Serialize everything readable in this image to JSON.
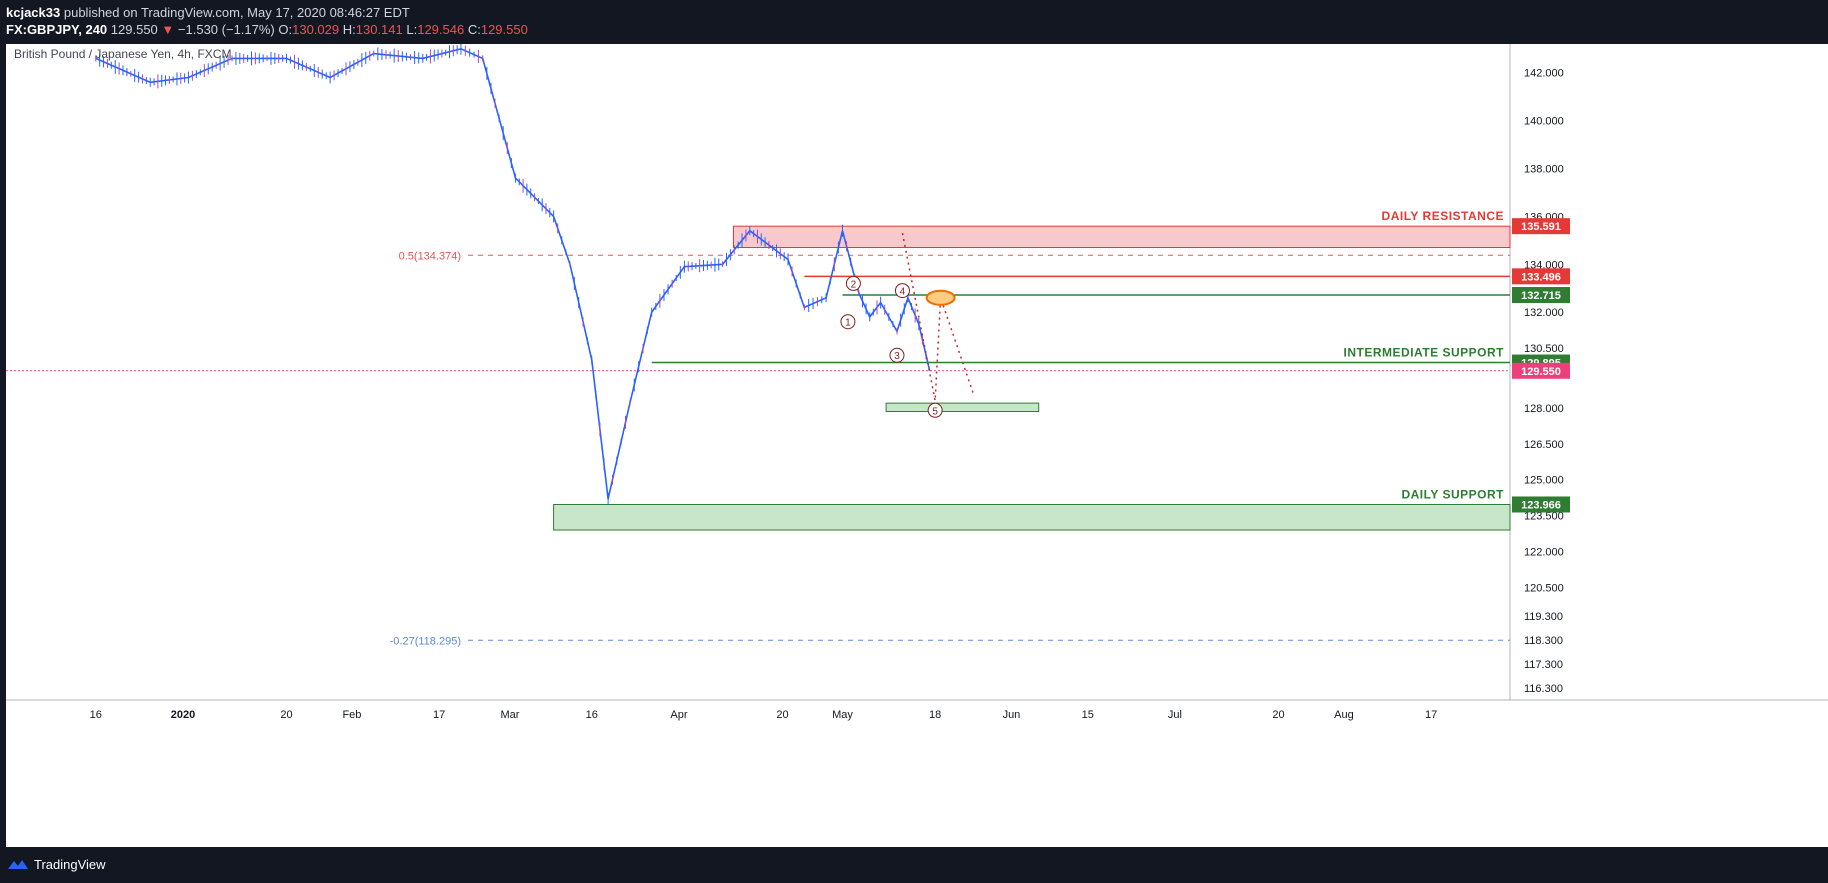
{
  "header": {
    "author": "kcjack33",
    "published": "published on TradingView.com, May 17, 2020 08:46:27 EDT",
    "symbol": "FX:GBPJPY, 240",
    "last": "129.550",
    "change": "−1.530 (−1.17%)",
    "o_label": "O:",
    "o_value": "130.029",
    "h_label": "H:",
    "h_value": "130.141",
    "l_label": "L:",
    "l_value": "129.546",
    "c_label": "C:",
    "c_value": "129.550"
  },
  "footer": {
    "brand": "TradingView"
  },
  "colors": {
    "resistance": "#e53935",
    "support": "#2e7d32",
    "last_price": "#ec407a",
    "fib": "#ef5350",
    "fib_ext": "#5b8ad6",
    "candle_up": "#2962ff",
    "candle_down": "#ab47bc"
  },
  "chart_data": {
    "type": "line",
    "title": "British Pound / Japanese Yen, 4h, FXCM",
    "y_axis_ticks": [
      "142.000",
      "140.000",
      "138.000",
      "136.000",
      "134.000",
      "132.000",
      "130.500",
      "128.000",
      "126.500",
      "125.000",
      "123.500",
      "122.000",
      "120.500",
      "119.300",
      "118.300",
      "117.300",
      "116.300"
    ],
    "x_axis_ticks": [
      "16",
      "2020",
      "20",
      "Feb",
      "17",
      "Mar",
      "16",
      "Apr",
      "20",
      "May",
      "18",
      "Jun",
      "15",
      "Jul",
      "20",
      "Aug",
      "17"
    ],
    "price_path": [
      [
        "Dec 16",
        142.6
      ],
      [
        "Dec 26",
        141.6
      ],
      [
        "Jan 2",
        141.8
      ],
      [
        "Jan 10",
        142.6
      ],
      [
        "Jan 20",
        142.6
      ],
      [
        "Jan 28",
        141.8
      ],
      [
        "Feb 5",
        142.8
      ],
      [
        "Feb 14",
        142.6
      ],
      [
        "Feb 21",
        143.0
      ],
      [
        "Feb 25",
        142.6
      ],
      [
        "Mar 2",
        137.6
      ],
      [
        "Mar 9",
        136.0
      ],
      [
        "Mar 12",
        134.0
      ],
      [
        "Mar 16",
        130.0
      ],
      [
        "Mar 19",
        124.2
      ],
      [
        "Mar 23",
        128.2
      ],
      [
        "Mar 27",
        132.0
      ],
      [
        "Apr 2",
        133.9
      ],
      [
        "Apr 9",
        134.0
      ],
      [
        "Apr 14",
        135.4
      ],
      [
        "Apr 21",
        134.2
      ],
      [
        "Apr 24",
        132.2
      ],
      [
        "Apr 28",
        132.6
      ],
      [
        "May 1",
        135.4
      ],
      [
        "May 4",
        132.8
      ],
      [
        "May 6",
        131.8
      ],
      [
        "May 8",
        132.4
      ],
      [
        "May 11",
        131.2
      ],
      [
        "May 13",
        132.6
      ],
      [
        "May 15",
        131.5
      ],
      [
        "May 17",
        129.55
      ]
    ],
    "levels": [
      {
        "label": "DAILY RESISTANCE",
        "value": 135.591,
        "tag": "135.591"
      },
      {
        "value": 133.496,
        "tag": "133.496"
      },
      {
        "value": 132.715,
        "tag": "132.715"
      },
      {
        "label": "INTERMEDIATE SUPPORT",
        "value": 129.895,
        "tag": "129.895"
      },
      {
        "value": 129.55,
        "tag": "129.550"
      },
      {
        "label": "DAILY SUPPORT",
        "value": 123.966,
        "tag": "123.966"
      }
    ],
    "zones": [
      {
        "top": 135.591,
        "bottom": 134.7
      },
      {
        "top": 128.2,
        "bottom": 127.85
      },
      {
        "top": 123.966,
        "bottom": 122.9
      }
    ],
    "fib_levels": [
      {
        "label": "0.5(134.374)",
        "value": 134.374
      },
      {
        "label": "-0.27(118.295)",
        "value": 118.295
      }
    ],
    "wave_labels": [
      "1",
      "2",
      "3",
      "4",
      "5"
    ],
    "grid": true
  }
}
